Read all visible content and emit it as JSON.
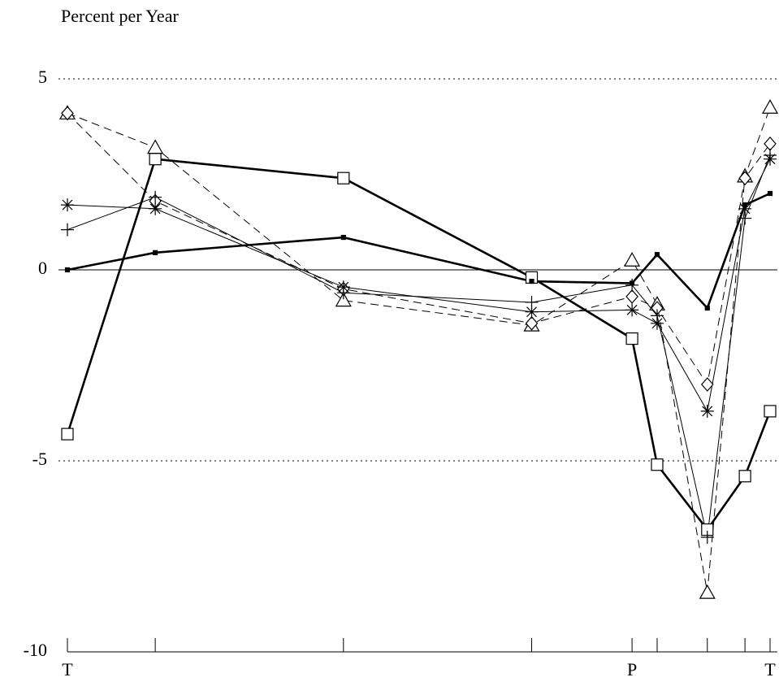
{
  "chart_data": {
    "type": "line",
    "title": "Percent per Year",
    "x": [
      0,
      14,
      44,
      74,
      90,
      94,
      102,
      108,
      112
    ],
    "xlim": [
      0,
      112
    ],
    "xticks": [
      {
        "value": 0,
        "label": "T"
      },
      {
        "value": 14,
        "label": null
      },
      {
        "value": 44,
        "label": null
      },
      {
        "value": 74,
        "label": null
      },
      {
        "value": 90,
        "label": "P"
      },
      {
        "value": 94,
        "label": null
      },
      {
        "value": 102,
        "label": null
      },
      {
        "value": 108,
        "label": null
      },
      {
        "value": 112,
        "label": "T"
      }
    ],
    "ylim": [
      -10,
      5
    ],
    "yticks": [
      -10,
      -5,
      0,
      5
    ],
    "grid": true,
    "series": [
      {
        "color": "#000000",
        "marker": "square",
        "dash": "solid",
        "width": 2.6,
        "values": [
          -4.3,
          2.9,
          2.4,
          -0.2,
          -1.8,
          -5.1,
          -6.8,
          -5.4,
          -3.7
        ]
      },
      {
        "color": "#000000",
        "marker": "dot",
        "dash": "solid",
        "width": 2.6,
        "values": [
          0,
          0.45,
          0.85,
          -0.3,
          -0.35,
          0.4,
          -1.0,
          1.7,
          2.0
        ]
      },
      {
        "color": "#000000",
        "marker": "triangle",
        "dash": "dashed",
        "width": 1,
        "values": [
          4.1,
          3.2,
          -0.8,
          -1.45,
          0.25,
          -0.9,
          -8.45,
          2.45,
          4.25
        ]
      },
      {
        "color": "#000000",
        "marker": "diamond",
        "dash": "dashed",
        "width": 1,
        "values": [
          4.1,
          1.8,
          -0.5,
          -1.4,
          -0.7,
          -1.0,
          -3.0,
          2.4,
          3.3
        ]
      },
      {
        "color": "#000000",
        "marker": "star",
        "dash": "solid",
        "width": 1,
        "values": [
          1.7,
          1.6,
          -0.45,
          -1.1,
          -1.05,
          -1.4,
          -3.7,
          1.6,
          2.9
        ]
      },
      {
        "color": "#000000",
        "marker": "plus",
        "dash": "solid",
        "width": 1,
        "values": [
          1.05,
          1.9,
          -0.6,
          -0.85,
          -0.4,
          -1.2,
          -7.0,
          1.35,
          3.0
        ]
      }
    ]
  }
}
